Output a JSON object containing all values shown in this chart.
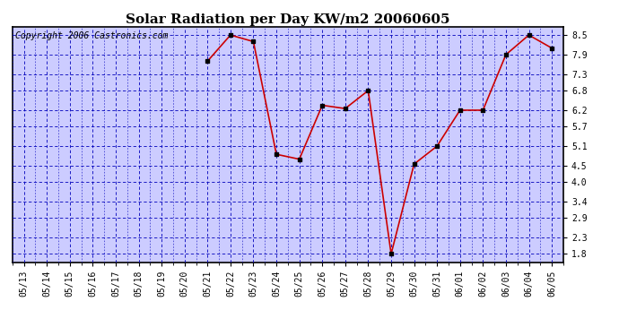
{
  "title": "Solar Radiation per Day KW/m2 20060605",
  "copyright": "Copyright 2006 Castronics.com",
  "dates": [
    "05/13",
    "05/14",
    "05/15",
    "05/16",
    "05/17",
    "05/18",
    "05/19",
    "05/20",
    "05/21",
    "05/22",
    "05/23",
    "05/24",
    "05/25",
    "05/26",
    "05/27",
    "05/28",
    "05/29",
    "05/30",
    "05/31",
    "06/01",
    "06/02",
    "06/03",
    "06/04",
    "06/05"
  ],
  "values": [
    null,
    null,
    null,
    null,
    null,
    null,
    null,
    null,
    7.7,
    8.5,
    8.3,
    4.85,
    4.7,
    6.35,
    6.25,
    6.8,
    1.8,
    4.55,
    5.1,
    6.2,
    6.2,
    7.9,
    8.5,
    8.1
  ],
  "yticks": [
    1.8,
    2.3,
    2.9,
    3.4,
    4.0,
    4.5,
    5.1,
    5.7,
    6.2,
    6.8,
    7.3,
    7.9,
    8.5
  ],
  "ylim": [
    1.55,
    8.75
  ],
  "line_color": "#cc0000",
  "marker_color": "#000000",
  "bg_color": "#ccccff",
  "grid_color": "#0000bb",
  "title_fontsize": 11,
  "copyright_fontsize": 7,
  "tick_fontsize": 7,
  "ytick_fontsize": 7
}
